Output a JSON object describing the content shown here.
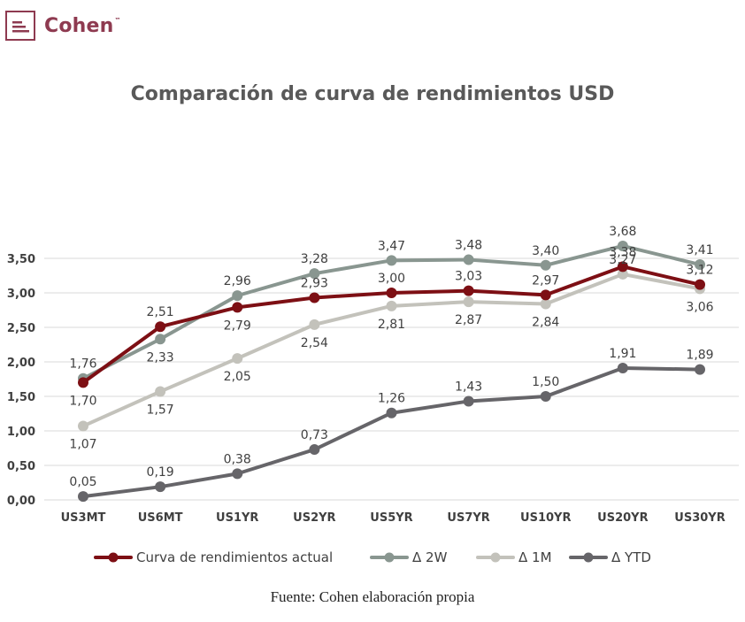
{
  "brand": {
    "name": "Cohen",
    "trademark": "™"
  },
  "source": "Fuente: Cohen elaboración propia",
  "colors": {
    "actual": "#7d0f14",
    "w2": "#899690",
    "m1": "#c3c2bb",
    "ytd": "#666569",
    "grid": "#d9d9d9",
    "brand": "#8e3a50"
  },
  "chart_data": {
    "type": "line",
    "title": "Comparación de curva de rendimientos USD",
    "xlabel": "",
    "ylabel": "",
    "categories": [
      "US3MT",
      "US6MT",
      "US1YR",
      "US2YR",
      "US5YR",
      "US7YR",
      "US10YR",
      "US20YR",
      "US30YR"
    ],
    "ylim": [
      0,
      3.5
    ],
    "yticks": [
      "0,00",
      "0,50",
      "1,00",
      "1,50",
      "2,00",
      "2,50",
      "3,00",
      "3,50"
    ],
    "grid": true,
    "legend_position": "bottom",
    "series": [
      {
        "name": "Curva de rendimientos actual",
        "color": "#7d0f14",
        "values": [
          1.7,
          2.51,
          2.79,
          2.93,
          3.0,
          3.03,
          2.97,
          3.38,
          3.12
        ],
        "labels": [
          "1,70",
          "2,51",
          "2,79",
          "2,93",
          "3,00",
          "3,03",
          "2,97",
          "3,38",
          "3,12"
        ]
      },
      {
        "name": "Δ 2W",
        "color": "#899690",
        "values": [
          1.76,
          2.33,
          2.96,
          3.28,
          3.47,
          3.48,
          3.4,
          3.68,
          3.41
        ],
        "labels": [
          "1,76",
          "2,33",
          "2,96",
          "3,28",
          "3,47",
          "3,48",
          "3,40",
          "3,68",
          "3,41"
        ]
      },
      {
        "name": "Δ 1M",
        "color": "#c3c2bb",
        "values": [
          1.07,
          1.57,
          2.05,
          2.54,
          2.81,
          2.87,
          2.84,
          3.27,
          3.06
        ],
        "labels": [
          "1,07",
          "1,57",
          "2,05",
          "2,54",
          "2,81",
          "2,87",
          "2,84",
          "3,27",
          "3,06"
        ]
      },
      {
        "name": "Δ YTD",
        "color": "#666569",
        "values": [
          0.05,
          0.19,
          0.38,
          0.73,
          1.26,
          1.43,
          1.5,
          1.91,
          1.89
        ],
        "labels": [
          "0,05",
          "0,19",
          "0,38",
          "0,73",
          "1,26",
          "1,43",
          "1,50",
          "1,91",
          "1,89"
        ]
      }
    ]
  }
}
